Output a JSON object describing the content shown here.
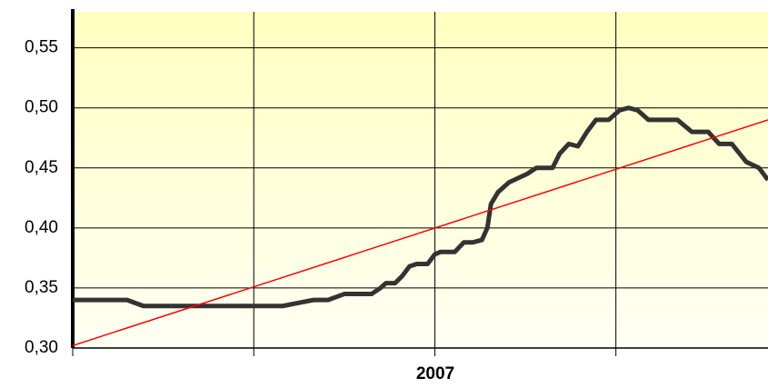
{
  "chart_data": {
    "type": "line",
    "x_label": "2007",
    "xlim": [
      0,
      3.84
    ],
    "xticks": [
      0,
      1,
      2,
      3
    ],
    "ylim": [
      0.3,
      0.58
    ],
    "yticks": [
      {
        "value": 0.3,
        "label": "0,30"
      },
      {
        "value": 0.35,
        "label": "0,35"
      },
      {
        "value": 0.4,
        "label": "0,40"
      },
      {
        "value": 0.45,
        "label": "0,45"
      },
      {
        "value": 0.5,
        "label": "0,50"
      },
      {
        "value": 0.55,
        "label": "0,55"
      }
    ],
    "grid": true,
    "series": [
      {
        "color": "#333333",
        "x": [
          0,
          0.3,
          0.39,
          1.16,
          1.26,
          1.33,
          1.41,
          1.5,
          1.65,
          1.7,
          1.73,
          1.78,
          1.82,
          1.86,
          1.9,
          1.96,
          2.0,
          2.03,
          2.11,
          2.16,
          2.21,
          2.26,
          2.29,
          2.31,
          2.35,
          2.41,
          2.51,
          2.56,
          2.65,
          2.69,
          2.74,
          2.79,
          2.84,
          2.89,
          2.96,
          3.02,
          3.07,
          3.12,
          3.18,
          3.34,
          3.42,
          3.51,
          3.57,
          3.64,
          3.72,
          3.79,
          3.84
        ],
        "values": [
          0.34,
          0.34,
          0.335,
          0.335,
          0.338,
          0.34,
          0.34,
          0.345,
          0.345,
          0.35,
          0.354,
          0.354,
          0.36,
          0.368,
          0.37,
          0.37,
          0.378,
          0.38,
          0.38,
          0.388,
          0.388,
          0.39,
          0.4,
          0.42,
          0.43,
          0.438,
          0.445,
          0.45,
          0.45,
          0.462,
          0.47,
          0.468,
          0.48,
          0.49,
          0.49,
          0.498,
          0.5,
          0.498,
          0.49,
          0.49,
          0.48,
          0.48,
          0.47,
          0.47,
          0.455,
          0.45,
          0.44
        ]
      },
      {
        "color": "#ff0000",
        "x": [
          0,
          3.84
        ],
        "values": [
          0.302,
          0.49
        ]
      }
    ]
  }
}
